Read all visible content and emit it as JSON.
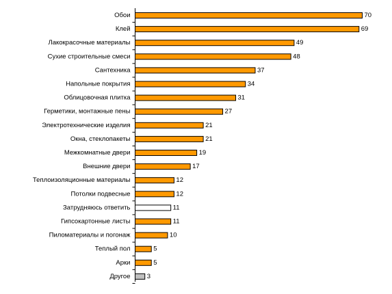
{
  "chart_data": {
    "type": "bar",
    "orientation": "horizontal",
    "categories": [
      "Обои",
      "Клей",
      "Лакокрасочные материалы",
      "Сухие строительные смеси",
      "Сантехника",
      "Напольные покрытия",
      "Облицовочная плитка",
      "Герметики, монтажные пены",
      "Электротехнические изделия",
      "Окна, стеклопакеты",
      "Межкомнатные двери",
      "Внешние двери",
      "Теплоизоляционные материалы",
      "Потолки подвесные",
      "Затрудняюсь ответить",
      "Гипсокартонные листы",
      "Пиломатериалы и погонаж",
      "Теплый пол",
      "Арки",
      "Другое"
    ],
    "values": [
      70,
      69,
      49,
      48,
      37,
      34,
      31,
      27,
      21,
      21,
      19,
      17,
      12,
      12,
      11,
      11,
      10,
      5,
      5,
      3
    ],
    "value_labels": [
      "70",
      "69",
      "49",
      "48",
      "37",
      "34",
      "31",
      "27",
      "21",
      "21",
      "19",
      "17",
      "12",
      "12",
      "11",
      "11",
      "10",
      "5",
      "5",
      "3"
    ],
    "bar_colors": [
      "#FF9900",
      "#FF9900",
      "#FF9900",
      "#FF9900",
      "#FF9900",
      "#FF9900",
      "#FF9900",
      "#FF9900",
      "#FF9900",
      "#FF9900",
      "#FF9900",
      "#FF9900",
      "#FF9900",
      "#FF9900",
      "#FFFFFF",
      "#FF9900",
      "#FF9900",
      "#FF9900",
      "#FF9900",
      "#C0C0C0"
    ],
    "title": "",
    "xlabel": "",
    "ylabel": "",
    "xlim": [
      0,
      70
    ],
    "grid": false,
    "legend": "none"
  }
}
